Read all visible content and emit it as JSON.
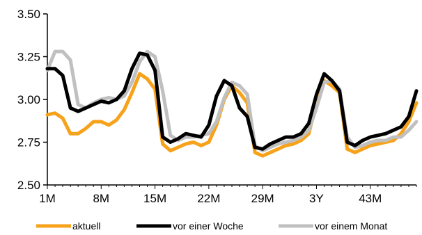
{
  "chart_data": {
    "type": "line",
    "title": "",
    "xlabel": "",
    "ylabel": "",
    "ylim": [
      2.5,
      3.5
    ],
    "yticks": [
      "2.50",
      "2.75",
      "3.00",
      "3.25",
      "3.50"
    ],
    "ytick_values": [
      2.5,
      2.75,
      3.0,
      3.25,
      3.5
    ],
    "x": [
      1,
      2,
      3,
      4,
      5,
      6,
      7,
      8,
      9,
      10,
      11,
      12,
      13,
      14,
      15,
      16,
      17,
      18,
      19,
      20,
      21,
      22,
      23,
      24,
      25,
      26,
      27,
      28,
      29,
      30,
      31,
      32,
      33,
      34,
      35,
      36,
      37,
      38,
      39,
      40,
      41,
      42,
      43,
      44,
      45,
      46,
      47,
      48,
      49
    ],
    "xlim": [
      1,
      49
    ],
    "xticks": [
      {
        "label": "1M",
        "x": 1
      },
      {
        "label": "8M",
        "x": 8
      },
      {
        "label": "15M",
        "x": 15
      },
      {
        "label": "22M",
        "x": 22
      },
      {
        "label": "29M",
        "x": 29
      },
      {
        "label": "3Y",
        "x": 36
      },
      {
        "label": "43M",
        "x": 43
      }
    ],
    "grid": false,
    "legend_position": "bottom",
    "series": [
      {
        "name": "aktuell",
        "color": "#f7a21b",
        "values": [
          2.91,
          2.92,
          2.89,
          2.8,
          2.8,
          2.83,
          2.87,
          2.87,
          2.85,
          2.88,
          2.94,
          3.04,
          3.15,
          3.12,
          3.06,
          2.74,
          2.7,
          2.72,
          2.74,
          2.75,
          2.73,
          2.75,
          2.85,
          3.0,
          3.08,
          3.04,
          2.98,
          2.69,
          2.67,
          2.69,
          2.71,
          2.73,
          2.74,
          2.76,
          2.8,
          2.98,
          3.11,
          3.08,
          3.04,
          2.71,
          2.69,
          2.71,
          2.73,
          2.74,
          2.75,
          2.76,
          2.8,
          2.87,
          2.98
        ]
      },
      {
        "name": "vor einer Woche",
        "color": "#000000",
        "values": [
          3.18,
          3.18,
          3.14,
          2.95,
          2.93,
          2.95,
          2.97,
          2.99,
          2.98,
          3.0,
          3.05,
          3.18,
          3.27,
          3.26,
          3.17,
          2.78,
          2.75,
          2.77,
          2.8,
          2.79,
          2.78,
          2.85,
          3.02,
          3.11,
          3.08,
          2.95,
          2.9,
          2.72,
          2.71,
          2.74,
          2.76,
          2.78,
          2.78,
          2.8,
          2.86,
          3.03,
          3.15,
          3.11,
          3.05,
          2.75,
          2.73,
          2.76,
          2.78,
          2.79,
          2.8,
          2.82,
          2.84,
          2.9,
          3.05
        ]
      },
      {
        "name": "vor einem Monat",
        "color": "#c0c0c0",
        "values": [
          3.17,
          3.28,
          3.28,
          3.23,
          2.97,
          2.95,
          2.98,
          3.0,
          3.01,
          3.0,
          3.02,
          3.1,
          3.22,
          3.28,
          3.25,
          3.05,
          2.79,
          2.76,
          2.78,
          2.78,
          2.79,
          2.8,
          2.87,
          3.01,
          3.1,
          3.08,
          3.03,
          2.73,
          2.7,
          2.72,
          2.74,
          2.75,
          2.76,
          2.78,
          2.82,
          2.95,
          3.1,
          3.11,
          3.06,
          2.78,
          2.72,
          2.73,
          2.75,
          2.76,
          2.76,
          2.78,
          2.78,
          2.82,
          2.87
        ]
      }
    ]
  }
}
